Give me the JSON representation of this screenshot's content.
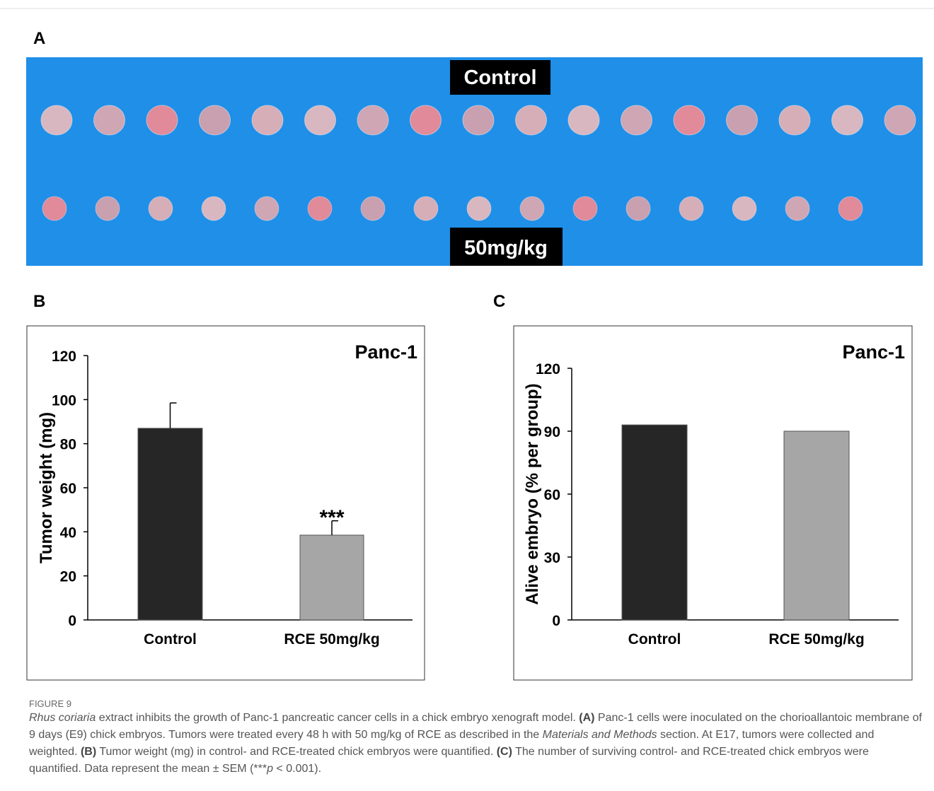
{
  "figure": {
    "panel_labels": [
      "A",
      "B",
      "C"
    ],
    "photo_labels": [
      "Control",
      "50mg/kg"
    ]
  },
  "chart_data": [
    {
      "type": "bar",
      "title": "Panc-1",
      "y_label": "Tumor weight (mg)",
      "categories": [
        "Control",
        "RCE 50mg/kg"
      ],
      "values": [
        87,
        38.5
      ],
      "errors": [
        11.5,
        6.5
      ],
      "colors": [
        "#262626",
        "#a6a6a6"
      ],
      "annotation": "***",
      "ylim": [
        0,
        120
      ],
      "yticks": [
        0,
        20,
        40,
        60,
        80,
        100,
        120
      ],
      "grid": false
    },
    {
      "type": "bar",
      "title": "Panc-1",
      "y_label": "Alive embryo (% per group)",
      "categories": [
        "Control",
        "RCE 50mg/kg"
      ],
      "values": [
        93,
        90
      ],
      "colors": [
        "#262626",
        "#a6a6a6"
      ],
      "ylim": [
        0,
        120
      ],
      "yticks": [
        0,
        30,
        60,
        90,
        120
      ],
      "grid": false
    }
  ],
  "caption": {
    "label": "FIGURE 9",
    "parts": [
      "Rhus coriaria",
      " extract inhibits the growth of Panc-1 pancreatic cancer cells in a chick embryo xenograft model. ",
      "(A)",
      " Panc-1 cells were inoculated on the chorioallantoic membrane of 9 days (E9) chick embryos. Tumors were treated every 48 h with 50 mg/kg of RCE as described in the ",
      "Materials and Methods",
      " section. At E17, tumors were collected and weighted. ",
      "(B)",
      " Tumor weight (mg) in control- and RCE-treated chick embryos were quantified. ",
      "(C)",
      " The number of surviving control- and RCE-treated chick embryos were quantified. Data represent the mean ± SEM (***",
      "p",
      " < 0.001)."
    ]
  }
}
